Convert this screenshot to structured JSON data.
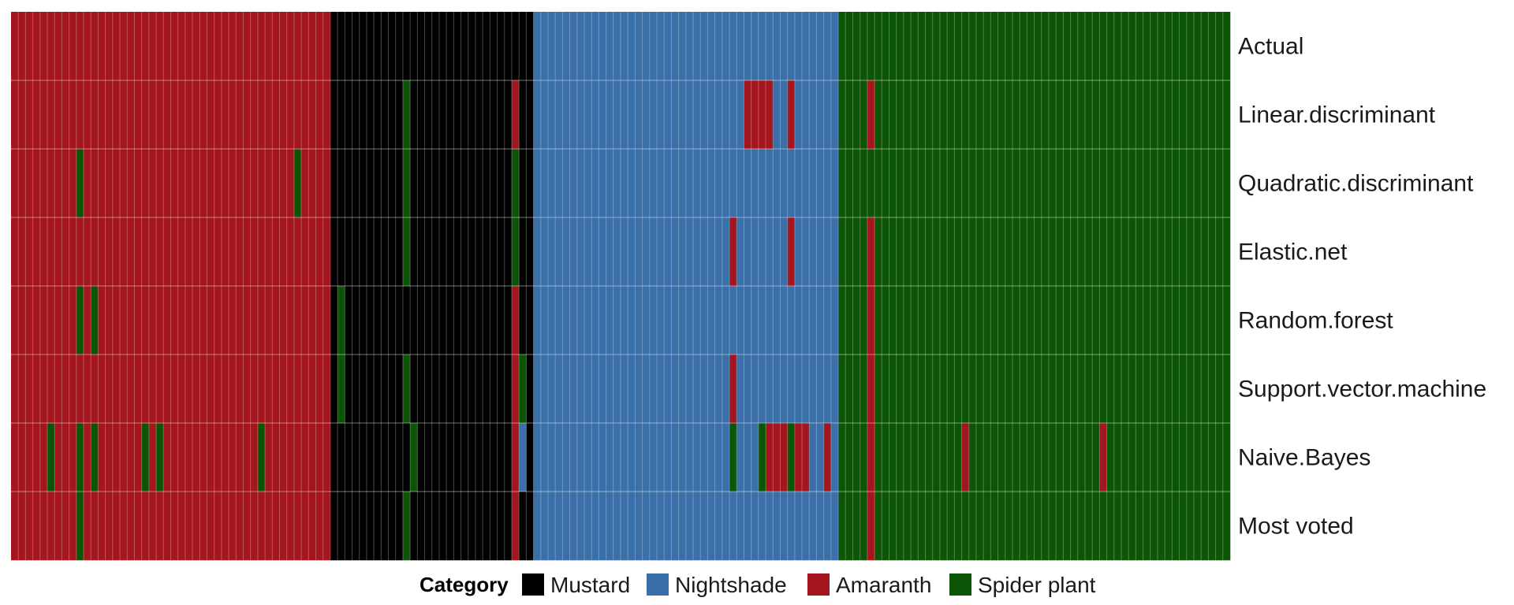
{
  "chart_data": {
    "type": "heatmap",
    "title": "",
    "xlabel": "",
    "ylabel": "",
    "n_columns": 168,
    "rows": [
      "Actual",
      "Linear.discriminant",
      "Quadratic.discriminant",
      "Elastic.net",
      "Random.forest",
      "Support.vector.machine",
      "Naive.Bayes",
      "Most voted"
    ],
    "categories": [
      "Mustard",
      "Nightshade",
      "Amaranth",
      "Spider plant"
    ],
    "colors": {
      "Mustard": "#000000",
      "Nightshade": "#3a6fa8",
      "Amaranth": "#a3161d",
      "Spider plant": "#0d5506"
    },
    "actual_blocks": [
      {
        "category": "Amaranth",
        "start": 0,
        "end": 43
      },
      {
        "category": "Mustard",
        "start": 44,
        "end": 71
      },
      {
        "category": "Nightshade",
        "start": 72,
        "end": 113
      },
      {
        "category": "Spider plant",
        "start": 114,
        "end": 167
      }
    ],
    "misclassifications": {
      "Linear.discriminant": [
        {
          "col": 54,
          "pred": "Spider plant"
        },
        {
          "col": 69,
          "pred": "Amaranth"
        },
        {
          "col": 101,
          "pred": "Amaranth"
        },
        {
          "col": 102,
          "pred": "Amaranth"
        },
        {
          "col": 103,
          "pred": "Amaranth"
        },
        {
          "col": 104,
          "pred": "Amaranth"
        },
        {
          "col": 107,
          "pred": "Amaranth"
        },
        {
          "col": 118,
          "pred": "Amaranth"
        }
      ],
      "Quadratic.discriminant": [
        {
          "col": 9,
          "pred": "Spider plant"
        },
        {
          "col": 39,
          "pred": "Spider plant"
        },
        {
          "col": 54,
          "pred": "Spider plant"
        },
        {
          "col": 69,
          "pred": "Spider plant"
        }
      ],
      "Elastic.net": [
        {
          "col": 54,
          "pred": "Spider plant"
        },
        {
          "col": 69,
          "pred": "Spider plant"
        },
        {
          "col": 99,
          "pred": "Amaranth"
        },
        {
          "col": 107,
          "pred": "Amaranth"
        },
        {
          "col": 118,
          "pred": "Amaranth"
        }
      ],
      "Random.forest": [
        {
          "col": 9,
          "pred": "Spider plant"
        },
        {
          "col": 11,
          "pred": "Spider plant"
        },
        {
          "col": 45,
          "pred": "Spider plant"
        },
        {
          "col": 69,
          "pred": "Amaranth"
        },
        {
          "col": 118,
          "pred": "Amaranth"
        }
      ],
      "Support.vector.machine": [
        {
          "col": 45,
          "pred": "Spider plant"
        },
        {
          "col": 54,
          "pred": "Spider plant"
        },
        {
          "col": 69,
          "pred": "Amaranth"
        },
        {
          "col": 70,
          "pred": "Spider plant"
        },
        {
          "col": 99,
          "pred": "Amaranth"
        },
        {
          "col": 118,
          "pred": "Amaranth"
        }
      ],
      "Naive.Bayes": [
        {
          "col": 5,
          "pred": "Spider plant"
        },
        {
          "col": 9,
          "pred": "Spider plant"
        },
        {
          "col": 11,
          "pred": "Spider plant"
        },
        {
          "col": 18,
          "pred": "Spider plant"
        },
        {
          "col": 20,
          "pred": "Spider plant"
        },
        {
          "col": 34,
          "pred": "Spider plant"
        },
        {
          "col": 55,
          "pred": "Spider plant"
        },
        {
          "col": 69,
          "pred": "Amaranth"
        },
        {
          "col": 70,
          "pred": "Nightshade"
        },
        {
          "col": 99,
          "pred": "Spider plant"
        },
        {
          "col": 103,
          "pred": "Spider plant"
        },
        {
          "col": 104,
          "pred": "Amaranth"
        },
        {
          "col": 105,
          "pred": "Amaranth"
        },
        {
          "col": 106,
          "pred": "Amaranth"
        },
        {
          "col": 107,
          "pred": "Spider plant"
        },
        {
          "col": 108,
          "pred": "Amaranth"
        },
        {
          "col": 109,
          "pred": "Amaranth"
        },
        {
          "col": 112,
          "pred": "Amaranth"
        },
        {
          "col": 118,
          "pred": "Amaranth"
        },
        {
          "col": 131,
          "pred": "Amaranth"
        },
        {
          "col": 150,
          "pred": "Amaranth"
        }
      ],
      "Most voted": [
        {
          "col": 9,
          "pred": "Spider plant"
        },
        {
          "col": 54,
          "pred": "Spider plant"
        },
        {
          "col": 69,
          "pred": "Amaranth"
        },
        {
          "col": 118,
          "pred": "Amaranth"
        }
      ]
    },
    "legend": {
      "title": "Category",
      "position": "bottom",
      "items": [
        "Mustard",
        "Nightshade",
        "Amaranth",
        "Spider plant"
      ]
    }
  }
}
